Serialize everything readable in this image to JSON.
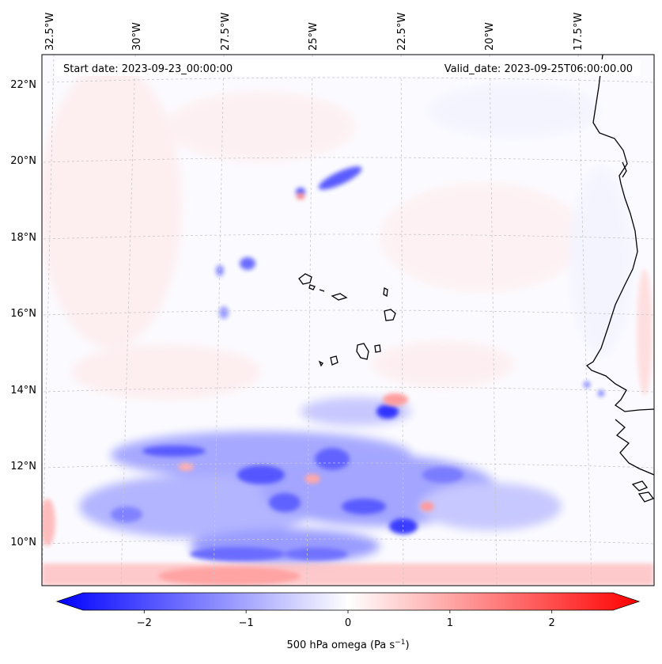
{
  "header": {
    "start_label": "Start date: 2023-09-23_00:00:00",
    "valid_label": "Valid_date: 2023-09-25T06:00:00.00"
  },
  "map": {
    "projection": "lambert-conformal",
    "lon_labels": [
      "32.5°W",
      "30°W",
      "27.5°W",
      "25°W",
      "22.5°W",
      "20°W",
      "17.5°W"
    ],
    "lat_labels": [
      "22°N",
      "20°N",
      "18°N",
      "16°N",
      "14°N",
      "12°N",
      "10°N"
    ],
    "gridlines": "dashed-grey",
    "coastline_color": "#000000",
    "features": [
      "west-africa-coast",
      "cabo-verde-islands"
    ],
    "field_colors": {
      "negative": "#0000ff",
      "zero": "#ffffff",
      "positive": "#ff0000"
    }
  },
  "colorbar": {
    "ticks": [
      "−2",
      "−1",
      "0",
      "1",
      "2"
    ],
    "tick_values": [
      -2,
      -1,
      0,
      1,
      2
    ],
    "range": [
      -2.6,
      2.6
    ],
    "extend": "both",
    "cmap": "bwr",
    "label_main": "500 hPa omega (Pa s",
    "label_sup": "−1",
    "label_close": ")"
  }
}
